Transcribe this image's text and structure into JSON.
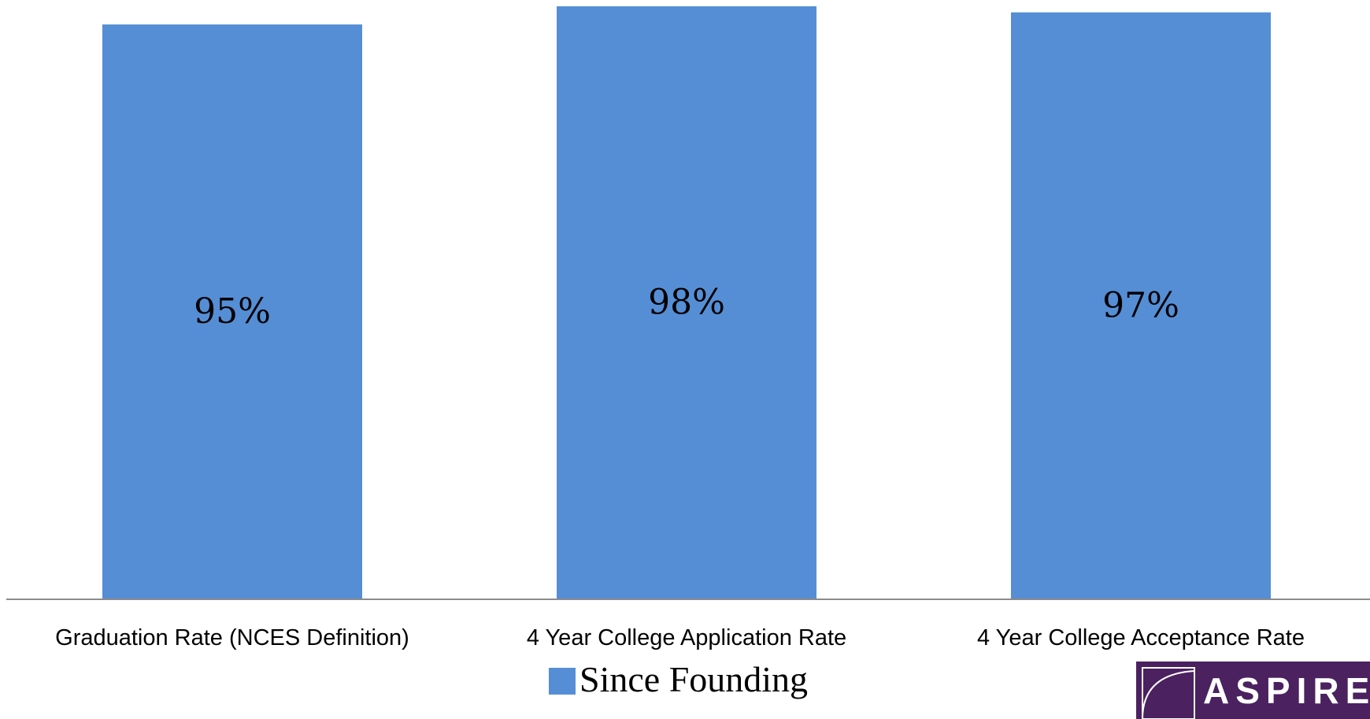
{
  "chart_data": {
    "type": "bar",
    "categories": [
      "Graduation Rate (NCES Definition)",
      "4 Year College Application Rate",
      "4 Year College Acceptance Rate"
    ],
    "series": [
      {
        "name": "Since Founding",
        "values": [
          95,
          98,
          97
        ]
      }
    ],
    "data_labels": [
      "95%",
      "98%",
      "97%"
    ],
    "ylim": [
      0,
      100
    ],
    "grid": false,
    "legend": "bottom",
    "bar_color": "#558ed5"
  },
  "logo": {
    "text": "ASPIRE",
    "color": "#4b2160"
  }
}
